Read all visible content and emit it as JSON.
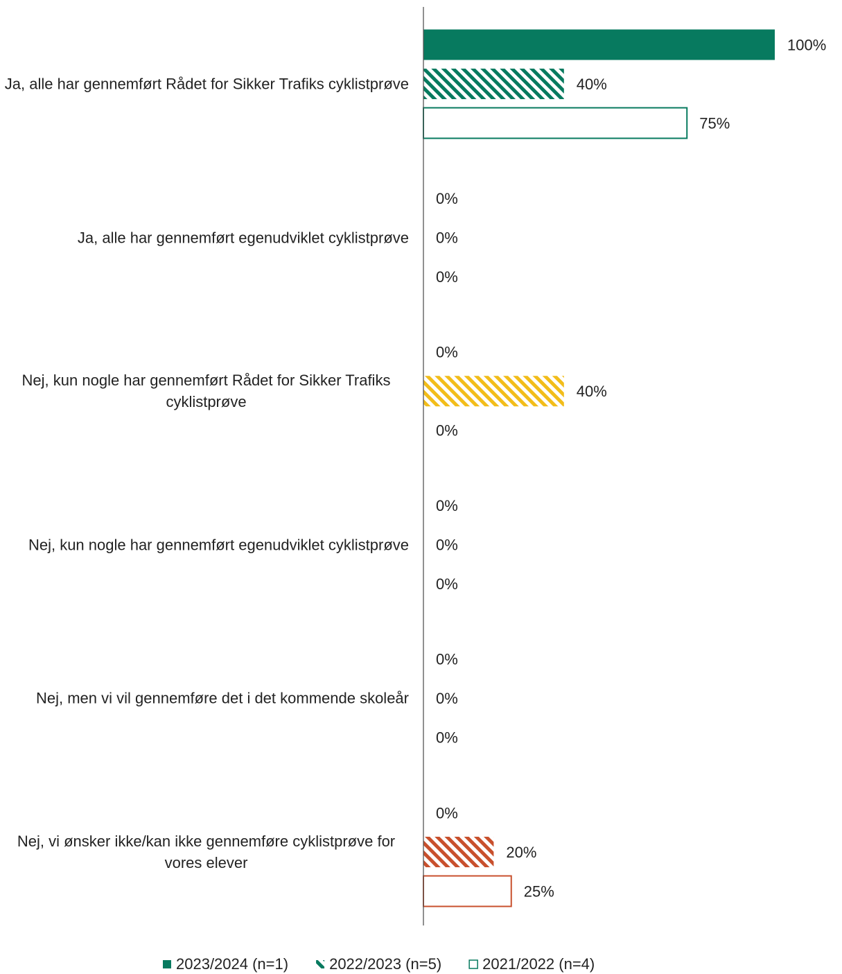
{
  "chart_data": {
    "type": "bar",
    "orientation": "horizontal",
    "categories": [
      "Ja, alle har gennemført Rådet for Sikker Trafiks cyklistprøve",
      "Ja, alle har gennemført egenudviklet cyklistprøve",
      "Nej, kun nogle har gennemført Rådet for Sikker Trafiks cyklistprøve",
      "Nej, kun nogle har gennemført egenudviklet cyklistprøve",
      "Nej, men vi vil gennemføre det i det kommende skoleår",
      "Nej, vi ønsker ikke/kan ikke gennemføre cyklistprøve for vores elever"
    ],
    "category_colors": [
      "#077a5f",
      "#077a5f",
      "#f2bd1a",
      "#077a5f",
      "#077a5f",
      "#c8502d"
    ],
    "series": [
      {
        "name": "2023/2024 (n=1)",
        "color": "#077a5f",
        "pattern": "solid",
        "values": [
          100,
          0,
          0,
          0,
          0,
          0
        ],
        "value_labels": [
          "100%",
          "0%",
          "0%",
          "0%",
          "0%",
          "0%"
        ]
      },
      {
        "name": "2022/2023 (n=5)",
        "color": "#077a5f",
        "pattern": "hatch",
        "values": [
          40,
          0,
          40,
          0,
          0,
          20
        ],
        "value_labels": [
          "40%",
          "0%",
          "40%",
          "0%",
          "0%",
          "20%"
        ]
      },
      {
        "name": "2021/2022 (n=4)",
        "color": "#077a5f",
        "pattern": "outline",
        "values": [
          75,
          0,
          0,
          0,
          0,
          25
        ],
        "value_labels": [
          "75%",
          "0%",
          "0%",
          "0%",
          "0%",
          "25%"
        ]
      }
    ],
    "xlim": [
      0,
      100
    ],
    "legend": "bottom"
  }
}
